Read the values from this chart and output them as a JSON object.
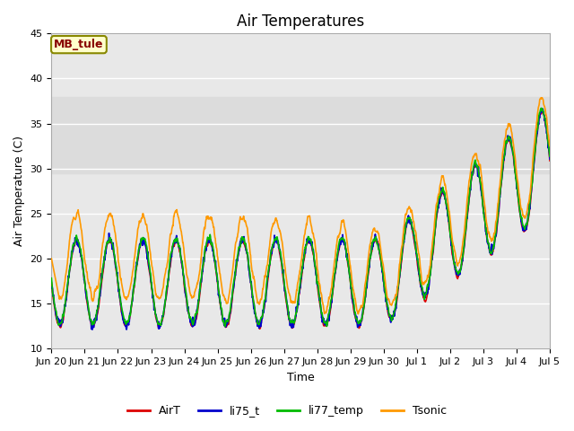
{
  "title": "Air Temperatures",
  "xlabel": "Time",
  "ylabel": "Air Temperature (C)",
  "ylim": [
    10,
    45
  ],
  "xlim": [
    0,
    15
  ],
  "tick_labels": [
    "Jun 20",
    "Jun 21",
    "Jun 22",
    "Jun 23",
    "Jun 24",
    "Jun 25",
    "Jun 26",
    "Jun 27",
    "Jun 28",
    "Jun 29",
    "Jun 30",
    "Jul 1",
    "Jul 2",
    "Jul 3",
    "Jul 4",
    "Jul 5"
  ],
  "tick_positions": [
    0,
    1,
    2,
    3,
    4,
    5,
    6,
    7,
    8,
    9,
    10,
    11,
    12,
    13,
    14,
    15
  ],
  "shaded_band": [
    29.5,
    38.0
  ],
  "shaded_color": "#dcdcdc",
  "annotation_text": "MB_tule",
  "annotation_bg": "#ffffcc",
  "annotation_fg": "#880000",
  "legend_labels": [
    "AirT",
    "li75_t",
    "li77_temp",
    "Tsonic"
  ],
  "line_colors": [
    "#dd0000",
    "#0000cc",
    "#00bb00",
    "#ff9900"
  ],
  "line_width": 1.2,
  "title_fontsize": 12,
  "label_fontsize": 9,
  "tick_fontsize": 8,
  "bg_color": "#e8e8e8",
  "grid_color": "#ffffff"
}
